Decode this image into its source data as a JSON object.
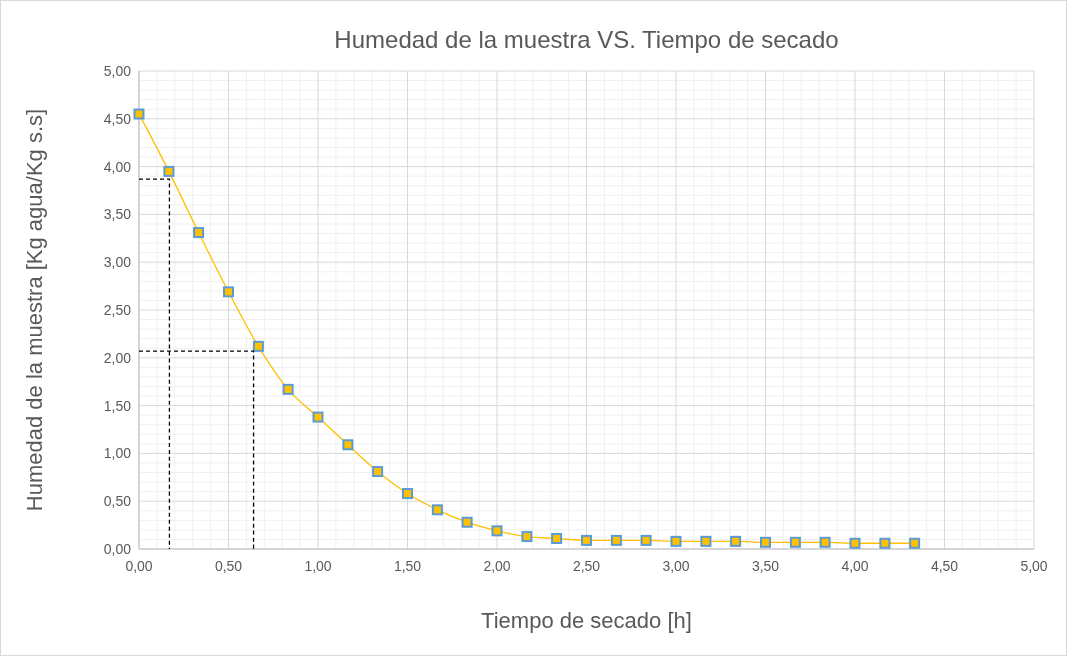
{
  "chart_data": {
    "type": "line",
    "title": "Humedad de la muestra VS. Tiempo de secado",
    "xlabel": "Tiempo de secado [h]",
    "ylabel": "Humedad de la muestra [Kg agua/Kg s.s]",
    "xlim": [
      0,
      5
    ],
    "ylim": [
      0,
      5
    ],
    "xticks": [
      {
        "value": 0,
        "label": "0,00"
      },
      {
        "value": 0.5,
        "label": "0,50"
      },
      {
        "value": 1,
        "label": "1,00"
      },
      {
        "value": 1.5,
        "label": "1,50"
      },
      {
        "value": 2,
        "label": "2,00"
      },
      {
        "value": 2.5,
        "label": "2,50"
      },
      {
        "value": 3,
        "label": "3,00"
      },
      {
        "value": 3.5,
        "label": "3,50"
      },
      {
        "value": 4,
        "label": "4,00"
      },
      {
        "value": 4.5,
        "label": "4,50"
      },
      {
        "value": 5,
        "label": "5,00"
      }
    ],
    "yticks": [
      {
        "value": 0,
        "label": "0,00"
      },
      {
        "value": 0.5,
        "label": "0,50"
      },
      {
        "value": 1,
        "label": "1,00"
      },
      {
        "value": 1.5,
        "label": "1,50"
      },
      {
        "value": 2,
        "label": "2,00"
      },
      {
        "value": 2.5,
        "label": "2,50"
      },
      {
        "value": 3,
        "label": "3,00"
      },
      {
        "value": 3.5,
        "label": "3,50"
      },
      {
        "value": 4,
        "label": "4,00"
      },
      {
        "value": 4.5,
        "label": "4,50"
      },
      {
        "value": 5,
        "label": "5,00"
      }
    ],
    "grid": true,
    "series": [
      {
        "color": "#ffc000",
        "marker": "square",
        "line_style": "solid",
        "x": [
          0,
          0.167,
          0.333,
          0.5,
          0.667,
          0.833,
          1,
          1.167,
          1.333,
          1.5,
          1.667,
          1.833,
          2,
          2.167,
          2.333,
          2.5,
          2.667,
          2.833,
          3,
          3.167,
          3.333,
          3.5,
          3.667,
          3.833,
          4,
          4.167,
          4.333
        ],
        "values": [
          4.55,
          3.95,
          3.31,
          2.69,
          2.12,
          1.67,
          1.38,
          1.09,
          0.81,
          0.58,
          0.41,
          0.28,
          0.19,
          0.13,
          0.11,
          0.09,
          0.09,
          0.09,
          0.08,
          0.08,
          0.08,
          0.07,
          0.07,
          0.07,
          0.06,
          0.06,
          0.06
        ]
      },
      {
        "color": "#000000",
        "marker": "none",
        "line_style": "dashed",
        "x": [
          0,
          0.17,
          0.17
        ],
        "values": [
          3.87,
          3.87,
          0
        ]
      },
      {
        "color": "#000000",
        "marker": "none",
        "line_style": "dashed",
        "x": [
          0,
          0.64,
          0.64
        ],
        "values": [
          2.07,
          2.07,
          0
        ]
      }
    ]
  }
}
